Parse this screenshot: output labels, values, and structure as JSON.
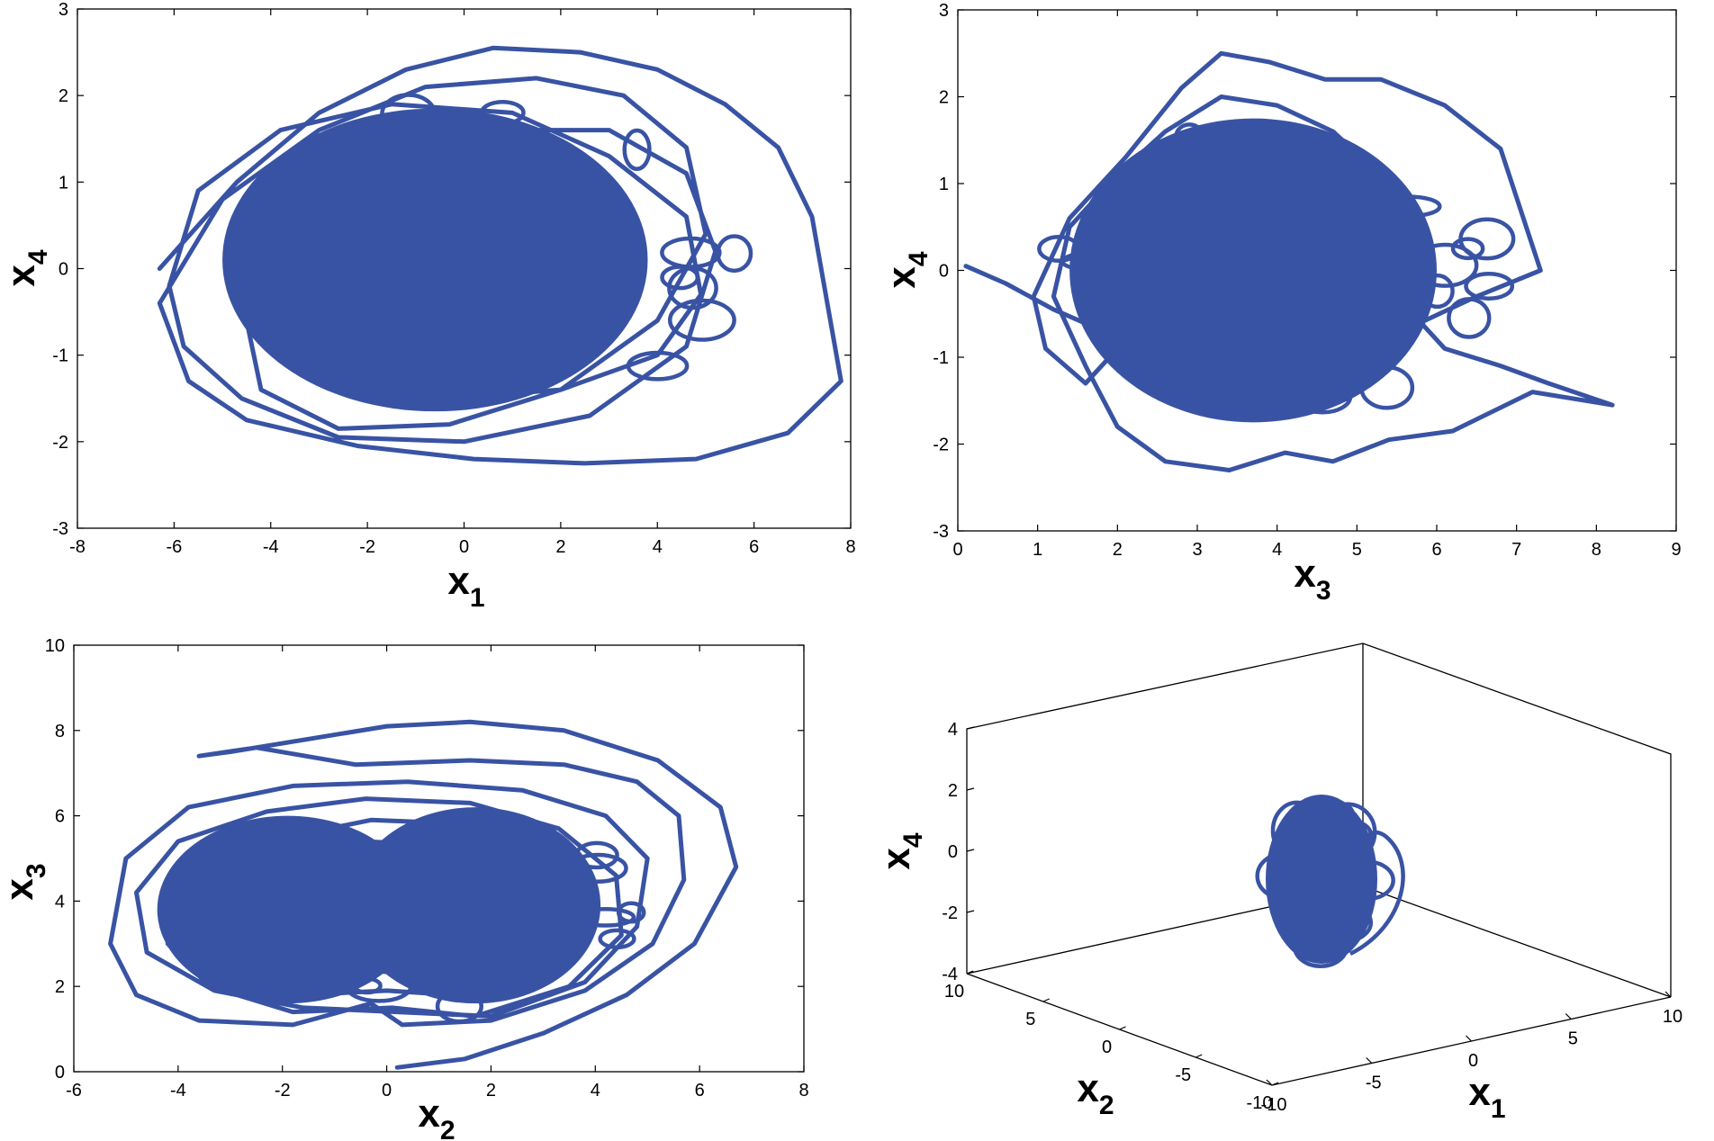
{
  "colors": {
    "trajectory": "#3953a4",
    "axes": "#000000",
    "background": "#ffffff"
  },
  "chart_data": [
    {
      "type": "line",
      "subtype": "phase-portrait",
      "position": "top-left",
      "xlabel": {
        "base": "x",
        "sub": "1"
      },
      "ylabel": {
        "base": "x",
        "sub": "4"
      },
      "xlim": [
        -8,
        8
      ],
      "ylim": [
        -3,
        3
      ],
      "xticks": [
        "-8",
        "-6",
        "-4",
        "-2",
        "0",
        "2",
        "4",
        "6",
        "8"
      ],
      "yticks": [
        "-3",
        "-2",
        "-1",
        "0",
        "1",
        "2",
        "3"
      ],
      "grid": false,
      "trajectory_extent": {
        "x": [
          -6.3,
          7.8
        ],
        "y": [
          -2.25,
          2.6
        ]
      },
      "series": [
        {
          "x": [
            -6.3,
            -4.7,
            -3.0,
            -1.2,
            0.6,
            2.4,
            4.0,
            5.4,
            6.5,
            7.2,
            7.8,
            6.7,
            4.8,
            2.5,
            0.2,
            -2.2,
            -4.5,
            -5.7,
            -6.3,
            -5.0,
            -3.0,
            -0.8,
            1.5,
            3.3,
            4.6,
            5.0,
            4.0,
            2.0,
            -0.3,
            -2.6,
            -4.2,
            -4.5,
            -3.4,
            -1.4,
            0.9,
            3.0,
            4.6,
            5.2,
            4.6,
            2.6,
            0.0,
            -2.6,
            -4.6,
            -5.8,
            -6.1,
            -5.5,
            -3.8,
            -1.5,
            1.0,
            3.0,
            4.6,
            4.9,
            4.0,
            2.0,
            -0.4,
            -2.5,
            -3.9,
            -4.1,
            -3.0,
            -0.8,
            1.6,
            3.4,
            3.6,
            2.3,
            0.0,
            -2.0,
            -2.9,
            -2.2,
            -0.4,
            1.4,
            2.2,
            1.2,
            -0.6,
            -1.5,
            -0.6,
            0.7
          ],
          "y": [
            0.0,
            1.0,
            1.8,
            2.3,
            2.55,
            2.5,
            2.3,
            1.9,
            1.4,
            0.6,
            -1.3,
            -1.9,
            -2.2,
            -2.25,
            -2.2,
            -2.05,
            -1.75,
            -1.3,
            -0.4,
            0.8,
            1.6,
            2.1,
            2.2,
            2.0,
            1.4,
            0.4,
            -0.6,
            -1.4,
            -1.8,
            -1.85,
            -1.4,
            -0.6,
            0.4,
            1.2,
            1.6,
            1.6,
            1.1,
            0.2,
            -0.9,
            -1.7,
            -2.0,
            -1.95,
            -1.5,
            -0.9,
            -0.2,
            0.9,
            1.6,
            1.9,
            1.8,
            1.3,
            0.6,
            -0.3,
            -1.0,
            -1.4,
            -1.5,
            -1.3,
            -0.7,
            0.1,
            0.9,
            1.3,
            1.2,
            0.6,
            -0.3,
            -0.9,
            -1.1,
            -0.8,
            -0.1,
            0.6,
            0.9,
            0.6,
            0.0,
            -0.5,
            -0.5,
            0.0,
            0.4,
            0.1
          ]
        }
      ]
    },
    {
      "type": "line",
      "subtype": "phase-portrait",
      "position": "top-right",
      "xlabel": {
        "base": "x",
        "sub": "3"
      },
      "ylabel": {
        "base": "x",
        "sub": "4"
      },
      "xlim": [
        0,
        9
      ],
      "ylim": [
        -3,
        3
      ],
      "xticks": [
        "0",
        "1",
        "2",
        "3",
        "4",
        "5",
        "6",
        "7",
        "8",
        "9"
      ],
      "yticks": [
        "-3",
        "-2",
        "-1",
        "0",
        "1",
        "2",
        "3"
      ],
      "grid": false,
      "trajectory_extent": {
        "x": [
          0.1,
          8.2
        ],
        "y": [
          -2.3,
          2.6
        ]
      },
      "series": [
        {
          "x": [
            0.1,
            0.6,
            1.2,
            1.7,
            2.0,
            1.6,
            1.1,
            0.95,
            1.4,
            2.1,
            2.8,
            3.3,
            3.9,
            4.6,
            5.3,
            6.1,
            6.8,
            7.3,
            6.5,
            5.8,
            6.1,
            6.8,
            7.4,
            8.2,
            7.2,
            6.2,
            5.4,
            4.7,
            4.1,
            3.4,
            2.6,
            2.0,
            1.6,
            1.2,
            1.4,
            2.0,
            2.6,
            3.3,
            4.0,
            4.7,
            5.3,
            5.8,
            5.4,
            4.6,
            3.8,
            3.1,
            2.6,
            3.0,
            3.7,
            4.4,
            5.0,
            4.6,
            3.9,
            3.2,
            2.8,
            3.2,
            3.8,
            4.3,
            4.0,
            3.4,
            3.1,
            3.5,
            4.0,
            3.7
          ],
          "y": [
            0.05,
            -0.15,
            -0.45,
            -0.65,
            -0.9,
            -1.3,
            -0.9,
            -0.3,
            0.6,
            1.3,
            2.1,
            2.5,
            2.4,
            2.2,
            2.2,
            1.9,
            1.4,
            0.0,
            -0.3,
            -0.6,
            -0.9,
            -1.1,
            -1.3,
            -1.55,
            -1.4,
            -1.85,
            -1.95,
            -2.2,
            -2.1,
            -2.3,
            -2.2,
            -1.8,
            -1.1,
            -0.3,
            0.5,
            1.1,
            1.6,
            2.0,
            1.9,
            1.6,
            1.1,
            0.5,
            -0.2,
            -0.8,
            -1.3,
            -1.5,
            -1.0,
            -0.2,
            0.6,
            1.2,
            1.0,
            0.4,
            -0.3,
            -0.9,
            -0.5,
            0.3,
            0.9,
            0.4,
            -0.3,
            -0.6,
            -0.1,
            0.5,
            0.2,
            -0.2
          ]
        }
      ]
    },
    {
      "type": "line",
      "subtype": "phase-portrait",
      "position": "bottom-left",
      "xlabel": {
        "base": "x",
        "sub": "2"
      },
      "ylabel": {
        "base": "x",
        "sub": "3"
      },
      "xlim": [
        -6,
        8
      ],
      "ylim": [
        0,
        10
      ],
      "xticks": [
        "-6",
        "-4",
        "-2",
        "0",
        "2",
        "4",
        "6",
        "8"
      ],
      "yticks": [
        "0",
        "2",
        "4",
        "6",
        "8",
        "10"
      ],
      "grid": false,
      "trajectory_extent": {
        "x": [
          -5.3,
          6.7
        ],
        "y": [
          0.1,
          8.2
        ]
      },
      "series": [
        {
          "x": [
            0.2,
            1.5,
            3.0,
            4.6,
            5.9,
            6.7,
            6.4,
            5.2,
            3.4,
            1.6,
            0.0,
            -1.5,
            -3.0,
            -3.6,
            -2.5,
            -0.6,
            1.6,
            3.4,
            4.8,
            5.6,
            5.7,
            5.1,
            3.8,
            2.0,
            0.3,
            -0.3,
            -1.8,
            -3.6,
            -4.8,
            -5.3,
            -5.0,
            -3.8,
            -1.8,
            0.4,
            2.6,
            4.2,
            5.0,
            4.8,
            3.8,
            2.0,
            0.2,
            -1.6,
            -3.3,
            -4.6,
            -4.8,
            -4.0,
            -2.3,
            -0.4,
            1.6,
            3.3,
            4.4,
            4.5,
            3.5,
            1.7,
            0.1,
            -1.8,
            -3.4,
            -4.2,
            -3.8,
            -2.3,
            -0.3,
            1.8,
            3.3,
            3.8,
            3.0,
            1.3,
            0.0,
            -1.6,
            -2.9,
            -3.3,
            -2.3,
            -0.5,
            1.4,
            2.7,
            2.8,
            1.5,
            0.0
          ],
          "y": [
            0.1,
            0.3,
            0.9,
            1.8,
            3.0,
            4.8,
            6.2,
            7.3,
            8.0,
            8.2,
            8.1,
            7.8,
            7.5,
            7.4,
            7.6,
            7.2,
            7.3,
            7.2,
            6.8,
            6.0,
            4.5,
            3.0,
            1.9,
            1.2,
            1.1,
            1.6,
            1.1,
            1.2,
            1.8,
            3.0,
            5.0,
            6.2,
            6.7,
            6.8,
            6.6,
            6.0,
            5.0,
            3.4,
            2.1,
            1.3,
            1.4,
            1.5,
            1.9,
            2.8,
            4.2,
            5.4,
            6.1,
            6.4,
            6.3,
            5.7,
            4.6,
            3.2,
            2.0,
            1.3,
            1.5,
            1.4,
            2.0,
            3.0,
            4.4,
            5.4,
            5.9,
            5.8,
            5.1,
            3.9,
            2.6,
            1.8,
            1.9,
            1.8,
            2.4,
            3.6,
            4.8,
            5.4,
            5.3,
            4.5,
            3.3,
            2.4,
            2.6
          ]
        }
      ]
    },
    {
      "type": "line",
      "subtype": "phase-portrait-3d",
      "position": "bottom-right",
      "xlabel": {
        "base": "x",
        "sub": "1"
      },
      "ylabel": {
        "base": "x",
        "sub": "2"
      },
      "zlabel": {
        "base": "x",
        "sub": "4"
      },
      "xlim": [
        -10,
        10
      ],
      "ylim": [
        -10,
        10
      ],
      "zlim": [
        -4,
        4
      ],
      "xticks": [
        "-10",
        "-5",
        "0",
        "5",
        "10"
      ],
      "yticks": [
        "-10",
        "-5",
        "0",
        "5",
        "10"
      ],
      "zticks": [
        "-4",
        "-2",
        "0",
        "2",
        "4"
      ],
      "grid": false
    }
  ]
}
